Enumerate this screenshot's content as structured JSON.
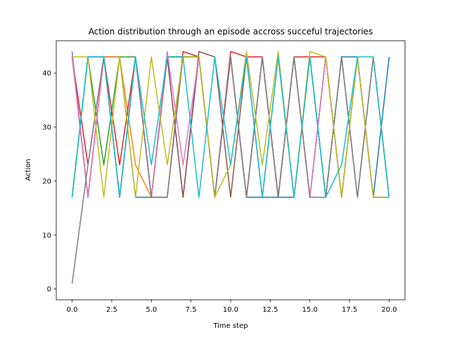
{
  "chart_data": {
    "type": "line",
    "title": "Action distribution through an episode accross succeful trajectories",
    "xlabel": "Time step",
    "ylabel": "Action",
    "xlim": [
      -1,
      21
    ],
    "ylim": [
      -2,
      46
    ],
    "xticks": [
      0.0,
      2.5,
      5.0,
      7.5,
      10.0,
      12.5,
      15.0,
      17.5,
      20.0
    ],
    "xtick_labels": [
      "0.0",
      "2.5",
      "5.0",
      "7.5",
      "10.0",
      "12.5",
      "15.0",
      "17.5",
      "20.0"
    ],
    "yticks": [
      0,
      10,
      20,
      30,
      40
    ],
    "ytick_labels": [
      "0",
      "10",
      "20",
      "30",
      "40"
    ],
    "grid": false,
    "x": [
      0,
      1,
      2,
      3,
      4,
      5,
      6,
      7,
      8,
      9,
      10,
      11,
      12,
      13,
      14,
      15,
      16,
      17,
      18,
      19,
      20
    ],
    "series": [
      {
        "color": "#1f77b4",
        "values": [
          17,
          43,
          43,
          43,
          17,
          17,
          43,
          43,
          43,
          17,
          43,
          17,
          17,
          17,
          17,
          43,
          17,
          43,
          43,
          17,
          43
        ]
      },
      {
        "color": "#ff7f0e",
        "values": [
          43,
          17,
          43,
          43,
          23,
          17,
          43,
          43,
          43,
          17,
          43,
          17,
          43,
          17,
          43,
          17,
          43,
          17,
          43,
          17,
          17
        ]
      },
      {
        "color": "#2ca02c",
        "values": [
          17,
          43,
          23,
          43,
          43,
          17,
          43,
          43,
          43,
          17,
          43,
          17,
          43,
          17,
          43,
          17,
          43,
          17,
          43,
          17,
          17
        ]
      },
      {
        "color": "#d62728",
        "values": [
          43,
          23,
          43,
          23,
          43,
          17,
          17,
          44,
          43,
          17,
          44,
          43,
          43,
          17,
          43,
          43,
          43,
          17,
          43,
          17,
          17
        ]
      },
      {
        "color": "#9467bd",
        "values": [
          44,
          17,
          43,
          17,
          43,
          17,
          43,
          17,
          43,
          17,
          43,
          17,
          43,
          17,
          43,
          17,
          43,
          17,
          43,
          17,
          17
        ]
      },
      {
        "color": "#8c564b",
        "values": [
          43,
          17,
          43,
          17,
          43,
          17,
          43,
          17,
          44,
          43,
          17,
          43,
          17,
          43,
          17,
          43,
          17,
          43,
          17,
          43,
          17
        ]
      },
      {
        "color": "#e377c2",
        "values": [
          43,
          17,
          43,
          17,
          43,
          17,
          44,
          23,
          43,
          17,
          43,
          17,
          43,
          17,
          43,
          17,
          43,
          17,
          43,
          17,
          17
        ]
      },
      {
        "color": "#7f7f7f",
        "values": [
          1,
          23,
          43,
          17,
          43,
          17,
          17,
          43,
          43,
          17,
          43,
          17,
          43,
          17,
          43,
          17,
          17,
          43,
          17,
          43,
          17
        ]
      },
      {
        "color": "#bcbd22",
        "values": [
          43,
          43,
          17,
          43,
          17,
          43,
          23,
          43,
          43,
          17,
          23,
          44,
          23,
          44,
          17,
          44,
          43,
          17,
          43,
          17,
          17
        ]
      },
      {
        "color": "#17becf",
        "values": [
          17,
          43,
          43,
          17,
          43,
          23,
          43,
          43,
          17,
          43,
          23,
          43,
          17,
          43,
          17,
          43,
          17,
          23,
          43,
          43,
          17
        ]
      }
    ]
  }
}
